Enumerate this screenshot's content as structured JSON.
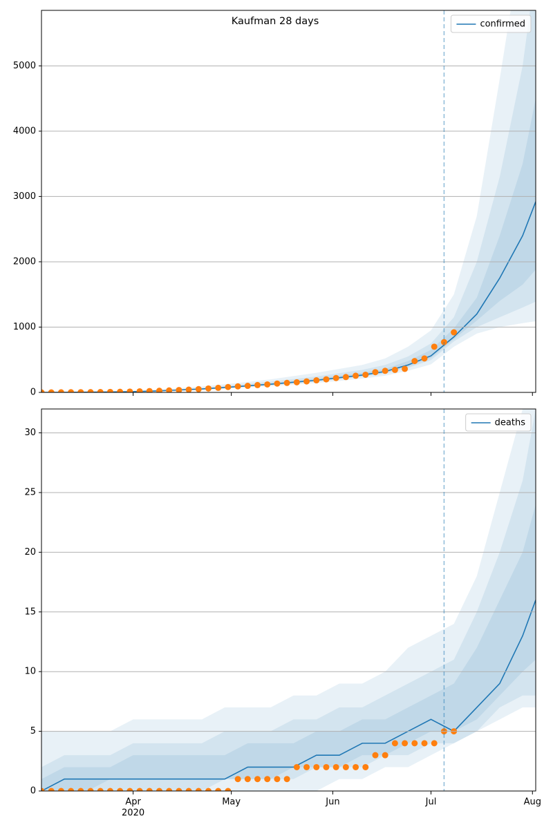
{
  "chart_data": [
    {
      "type": "line",
      "title": "Kaufman 28 days",
      "x": [
        "2020-03-04",
        "2020-03-11",
        "2020-03-18",
        "2020-03-25",
        "2020-04-01",
        "2020-04-08",
        "2020-04-15",
        "2020-04-22",
        "2020-04-29",
        "2020-05-06",
        "2020-05-13",
        "2020-05-20",
        "2020-05-27",
        "2020-06-03",
        "2020-06-10",
        "2020-06-17",
        "2020-06-24",
        "2020-07-01",
        "2020-07-08",
        "2020-07-15",
        "2020-07-22",
        "2020-07-29",
        "2020-08-02"
      ],
      "series": [
        {
          "name": "confirmed",
          "color": "#1f77b4",
          "values": [
            0,
            1,
            3,
            6,
            12,
            22,
            36,
            52,
            75,
            100,
            125,
            155,
            185,
            225,
            265,
            320,
            420,
            560,
            850,
            1200,
            1750,
            2400,
            2920
          ]
        }
      ],
      "band_color": "#1f77b4",
      "bands": [
        {
          "lower": [
            0,
            0,
            1,
            3,
            8,
            15,
            25,
            38,
            55,
            75,
            95,
            120,
            145,
            175,
            210,
            255,
            330,
            430,
            700,
            900,
            1000,
            1060,
            1090
          ],
          "upper": [
            5,
            8,
            12,
            18,
            28,
            45,
            65,
            90,
            125,
            160,
            200,
            250,
            300,
            360,
            420,
            520,
            700,
            950,
            1500,
            2700,
            4800,
            7000,
            9000
          ]
        },
        {
          "lower": [
            0,
            1,
            2,
            4,
            10,
            18,
            30,
            45,
            65,
            87,
            110,
            137,
            165,
            200,
            238,
            288,
            375,
            495,
            780,
            1000,
            1150,
            1300,
            1390
          ],
          "upper": [
            3,
            5,
            8,
            12,
            20,
            33,
            50,
            70,
            100,
            130,
            165,
            205,
            245,
            295,
            345,
            420,
            550,
            750,
            1150,
            2000,
            3300,
            5000,
            6500
          ]
        },
        {
          "lower": [
            0,
            1,
            2,
            5,
            11,
            20,
            33,
            48,
            70,
            93,
            117,
            146,
            175,
            212,
            251,
            304,
            397,
            527,
            815,
            1100,
            1400,
            1650,
            1880
          ],
          "upper": [
            1,
            3,
            5,
            8,
            15,
            27,
            42,
            60,
            85,
            112,
            140,
            175,
            210,
            255,
            300,
            360,
            480,
            650,
            980,
            1450,
            2400,
            3500,
            4500
          ]
        }
      ],
      "observed": {
        "color": "#ff7f0e",
        "x": [
          "2020-03-04",
          "2020-03-07",
          "2020-03-10",
          "2020-03-13",
          "2020-03-16",
          "2020-03-19",
          "2020-03-22",
          "2020-03-25",
          "2020-03-28",
          "2020-03-31",
          "2020-04-03",
          "2020-04-06",
          "2020-04-09",
          "2020-04-12",
          "2020-04-15",
          "2020-04-18",
          "2020-04-21",
          "2020-04-24",
          "2020-04-27",
          "2020-04-30",
          "2020-05-03",
          "2020-05-06",
          "2020-05-09",
          "2020-05-12",
          "2020-05-15",
          "2020-05-18",
          "2020-05-21",
          "2020-05-24",
          "2020-05-27",
          "2020-05-30",
          "2020-06-02",
          "2020-06-05",
          "2020-06-08",
          "2020-06-11",
          "2020-06-14",
          "2020-06-17",
          "2020-06-20",
          "2020-06-23",
          "2020-06-26",
          "2020-06-29",
          "2020-07-02",
          "2020-07-05",
          "2020-07-08"
        ],
        "values": [
          0,
          0,
          1,
          2,
          3,
          4,
          5,
          7,
          9,
          12,
          16,
          20,
          25,
          30,
          36,
          42,
          50,
          60,
          70,
          82,
          92,
          100,
          112,
          122,
          135,
          145,
          155,
          168,
          185,
          200,
          220,
          235,
          255,
          270,
          310,
          330,
          345,
          360,
          480,
          520,
          700,
          770,
          920
        ]
      },
      "forecast_start": "2020-07-05",
      "xlim": [
        "2020-03-04",
        "2020-08-02"
      ],
      "xticks": [
        "2020-04-01",
        "2020-05-01",
        "2020-06-01",
        "2020-07-01",
        "2020-08-01"
      ],
      "ylim": [
        0,
        5850
      ],
      "yticks": [
        0,
        1000,
        2000,
        3000,
        4000,
        5000
      ],
      "grid": true,
      "legend": "upper right"
    },
    {
      "type": "line",
      "x": [
        "2020-03-04",
        "2020-03-11",
        "2020-03-18",
        "2020-03-25",
        "2020-04-01",
        "2020-04-08",
        "2020-04-15",
        "2020-04-22",
        "2020-04-29",
        "2020-05-06",
        "2020-05-13",
        "2020-05-20",
        "2020-05-27",
        "2020-06-03",
        "2020-06-10",
        "2020-06-17",
        "2020-06-24",
        "2020-07-01",
        "2020-07-08",
        "2020-07-15",
        "2020-07-22",
        "2020-07-29",
        "2020-08-02"
      ],
      "series": [
        {
          "name": "deaths",
          "color": "#1f77b4",
          "values": [
            0,
            1,
            1,
            1,
            1,
            1,
            1,
            1,
            1,
            2,
            2,
            2,
            3,
            3,
            4,
            4,
            5,
            6,
            5,
            7,
            9,
            13,
            16
          ]
        }
      ],
      "band_color": "#1f77b4",
      "bands": [
        {
          "lower": [
            0,
            0,
            0,
            0,
            0,
            0,
            0,
            0,
            0,
            0,
            0,
            0,
            0,
            1,
            1,
            2,
            2,
            3,
            4,
            5,
            6,
            7,
            7
          ],
          "upper": [
            5,
            5,
            5,
            5,
            6,
            6,
            6,
            6,
            7,
            7,
            7,
            8,
            8,
            9,
            9,
            10,
            12,
            13,
            14,
            18,
            25,
            32,
            40
          ]
        },
        {
          "lower": [
            0,
            0,
            0,
            0,
            0,
            0,
            0,
            0,
            1,
            1,
            1,
            1,
            2,
            2,
            2,
            3,
            3,
            4,
            4,
            5,
            7,
            8,
            8
          ],
          "upper": [
            2,
            3,
            3,
            3,
            4,
            4,
            4,
            4,
            5,
            5,
            5,
            6,
            6,
            7,
            7,
            8,
            9,
            10,
            11,
            15,
            20,
            26,
            32
          ]
        },
        {
          "lower": [
            0,
            0,
            0,
            1,
            1,
            1,
            1,
            1,
            1,
            1,
            1,
            2,
            2,
            2,
            3,
            3,
            4,
            5,
            5,
            6,
            8,
            10,
            11
          ],
          "upper": [
            1,
            2,
            2,
            2,
            3,
            3,
            3,
            3,
            3,
            4,
            4,
            4,
            5,
            5,
            6,
            6,
            7,
            8,
            9,
            12,
            16,
            20,
            24
          ]
        }
      ],
      "observed": {
        "color": "#ff7f0e",
        "x": [
          "2020-03-04",
          "2020-03-07",
          "2020-03-10",
          "2020-03-13",
          "2020-03-16",
          "2020-03-19",
          "2020-03-22",
          "2020-03-25",
          "2020-03-28",
          "2020-03-31",
          "2020-04-03",
          "2020-04-06",
          "2020-04-09",
          "2020-04-12",
          "2020-04-15",
          "2020-04-18",
          "2020-04-21",
          "2020-04-24",
          "2020-04-27",
          "2020-04-30",
          "2020-05-03",
          "2020-05-06",
          "2020-05-09",
          "2020-05-12",
          "2020-05-15",
          "2020-05-18",
          "2020-05-21",
          "2020-05-24",
          "2020-05-27",
          "2020-05-30",
          "2020-06-02",
          "2020-06-05",
          "2020-06-08",
          "2020-06-11",
          "2020-06-14",
          "2020-06-17",
          "2020-06-20",
          "2020-06-23",
          "2020-06-26",
          "2020-06-29",
          "2020-07-02",
          "2020-07-05",
          "2020-07-08"
        ],
        "values": [
          0,
          0,
          0,
          0,
          0,
          0,
          0,
          0,
          0,
          0,
          0,
          0,
          0,
          0,
          0,
          0,
          0,
          0,
          0,
          0,
          1,
          1,
          1,
          1,
          1,
          1,
          2,
          2,
          2,
          2,
          2,
          2,
          2,
          2,
          3,
          3,
          4,
          4,
          4,
          4,
          4,
          5,
          5
        ]
      },
      "forecast_start": "2020-07-05",
      "xlim": [
        "2020-03-04",
        "2020-08-02"
      ],
      "xticks": [
        {
          "value": "2020-04-01",
          "label": "Apr"
        },
        {
          "value": "2020-05-01",
          "label": "May"
        },
        {
          "value": "2020-06-01",
          "label": "Jun"
        },
        {
          "value": "2020-07-01",
          "label": "Jul"
        },
        {
          "value": "2020-08-01",
          "label": "Aug"
        }
      ],
      "x_year_label": "2020",
      "ylim": [
        0,
        32
      ],
      "yticks": [
        0,
        5,
        10,
        15,
        20,
        25,
        30
      ],
      "grid": true,
      "legend": "upper right"
    }
  ]
}
